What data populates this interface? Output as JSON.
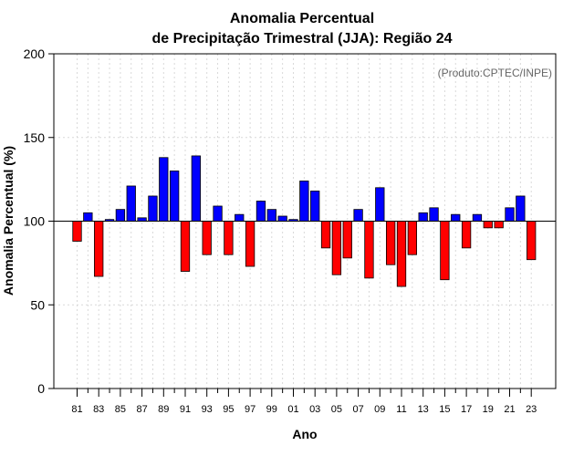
{
  "chart_data": {
    "type": "bar",
    "title_line1": "Anomalia Percentual",
    "title_line2": "de Precipitação Trimestral (JJA): Região 24",
    "xlabel": "Ano",
    "ylabel": "Anomalia Percentual (%)",
    "annotation": "(Produto:CPTEC/INPE)",
    "ylim": [
      0,
      200
    ],
    "yticks": [
      "0",
      "50",
      "100",
      "150",
      "200"
    ],
    "baseline": 100,
    "xtick_labels": [
      "81",
      "83",
      "85",
      "87",
      "89",
      "91",
      "93",
      "95",
      "97",
      "99",
      "01",
      "03",
      "05",
      "07",
      "09",
      "11",
      "13",
      "15",
      "17",
      "19",
      "21",
      "23"
    ],
    "xtick_every": 2,
    "grid": true,
    "colors": {
      "above": "#0000ff",
      "below": "#ff0000"
    },
    "categories": [
      "1981",
      "1982",
      "1983",
      "1984",
      "1985",
      "1986",
      "1987",
      "1988",
      "1989",
      "1990",
      "1991",
      "1992",
      "1993",
      "1994",
      "1995",
      "1996",
      "1997",
      "1998",
      "1999",
      "2000",
      "2001",
      "2002",
      "2003",
      "2004",
      "2005",
      "2006",
      "2007",
      "2008",
      "2009",
      "2010",
      "2011",
      "2012",
      "2013",
      "2014",
      "2015",
      "2016",
      "2017",
      "2018",
      "2019",
      "2020",
      "2021",
      "2022",
      "2023"
    ],
    "values": [
      88,
      105,
      67,
      101,
      107,
      121,
      102,
      115,
      138,
      130,
      70,
      139,
      80,
      109,
      80,
      104,
      73,
      112,
      107,
      103,
      101,
      124,
      118,
      84,
      68,
      78,
      107,
      66,
      120,
      74,
      61,
      80,
      105,
      108,
      65,
      104,
      84,
      104,
      96,
      96,
      108,
      115,
      77
    ]
  }
}
